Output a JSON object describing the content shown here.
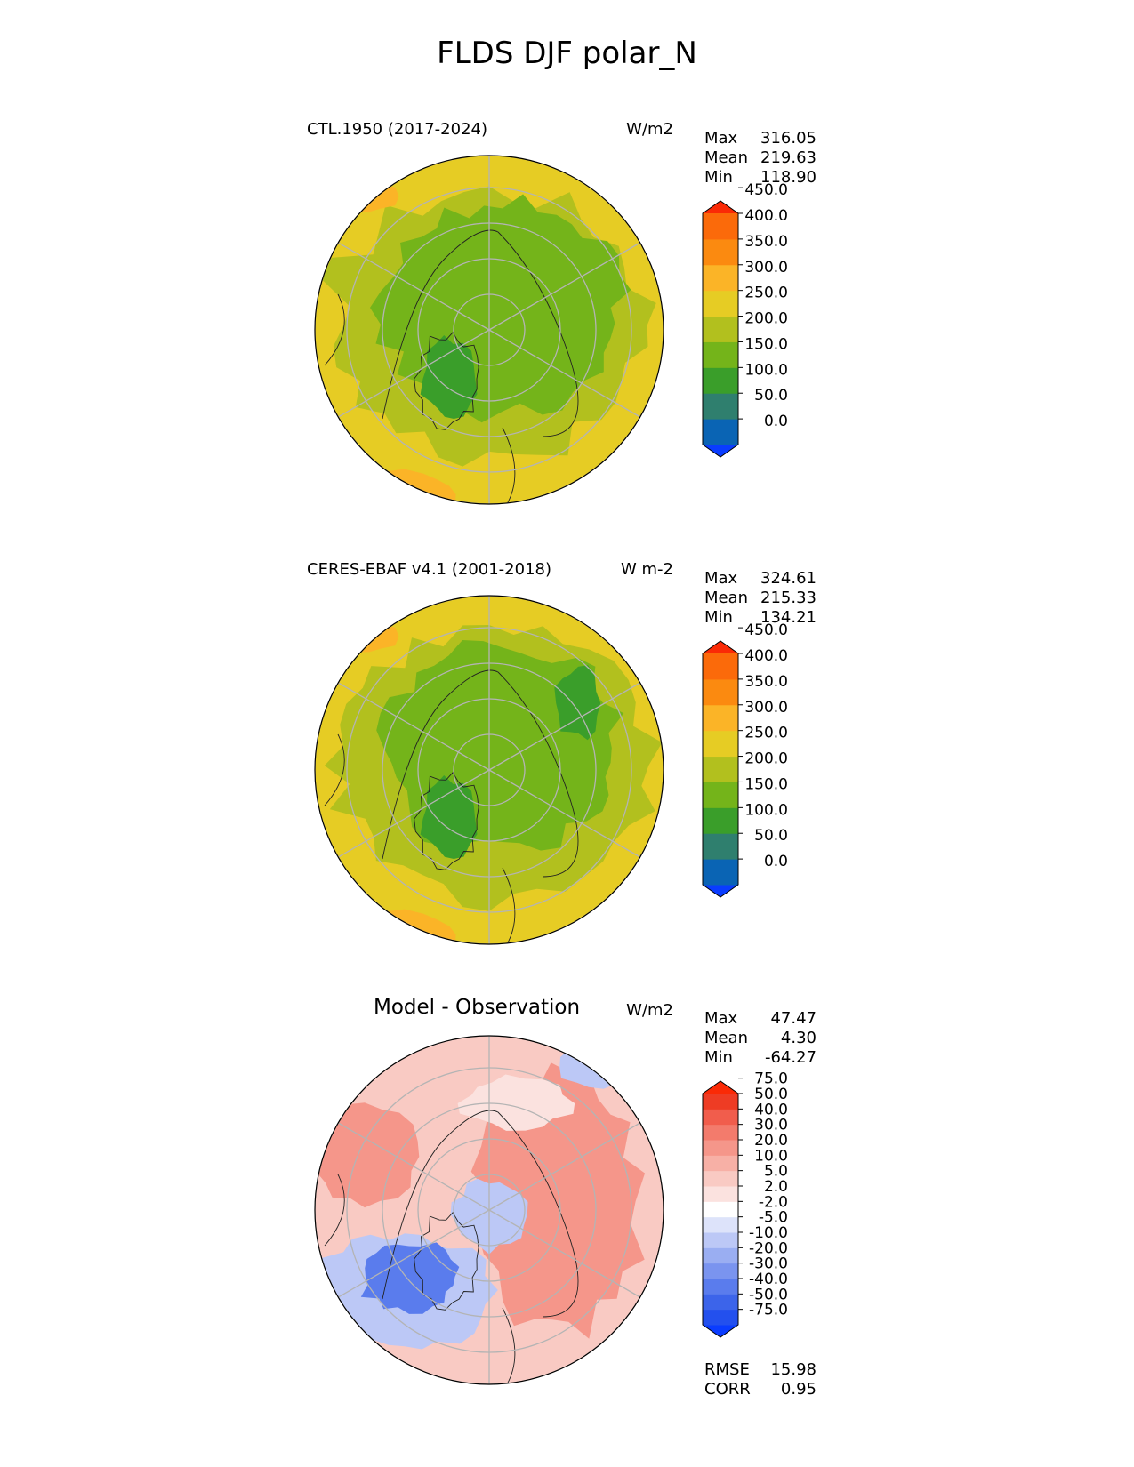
{
  "figure": {
    "title": "FLDS DJF polar_N"
  },
  "panels": [
    {
      "id": "test",
      "title": "CTL.1950 (2017-2024)",
      "units": "W/m2",
      "stats": [
        {
          "label": "Max",
          "value": "316.05"
        },
        {
          "label": "Mean",
          "value": "219.63"
        },
        {
          "label": "Min",
          "value": "118.90"
        }
      ],
      "colorbar": {
        "labels": [
          "450.0",
          "400.0",
          "350.0",
          "300.0",
          "250.0",
          "200.0",
          "150.0",
          "100.0",
          "50.0",
          "0.0"
        ],
        "levels": [
          0,
          50,
          100,
          150,
          200,
          250,
          300,
          350,
          400,
          450
        ],
        "colors": [
          "#0a3cff",
          "#0a64b4",
          "#2f7f6e",
          "#3a9e2a",
          "#74b41a",
          "#b2c01e",
          "#e6cc24",
          "#fbb427",
          "#fb8a10",
          "#fb6a0a",
          "#fa2a06"
        ]
      }
    },
    {
      "id": "reference",
      "title": "CERES-EBAF v4.1 (2001-2018)",
      "units": "W m-2",
      "stats": [
        {
          "label": "Max",
          "value": "324.61"
        },
        {
          "label": "Mean",
          "value": "215.33"
        },
        {
          "label": "Min",
          "value": "134.21"
        }
      ],
      "colorbar": {
        "labels": [
          "450.0",
          "400.0",
          "350.0",
          "300.0",
          "250.0",
          "200.0",
          "150.0",
          "100.0",
          "50.0",
          "0.0"
        ],
        "levels": [
          0,
          50,
          100,
          150,
          200,
          250,
          300,
          350,
          400,
          450
        ],
        "colors": [
          "#0a3cff",
          "#0a64b4",
          "#2f7f6e",
          "#3a9e2a",
          "#74b41a",
          "#b2c01e",
          "#e6cc24",
          "#fbb427",
          "#fb8a10",
          "#fb6a0a",
          "#fa2a06"
        ]
      }
    },
    {
      "id": "difference",
      "title": "Model - Observation",
      "units": "W/m2",
      "stats": [
        {
          "label": "Max",
          "value": "47.47"
        },
        {
          "label": "Mean",
          "value": "4.30"
        },
        {
          "label": "Min",
          "value": "-64.27"
        }
      ],
      "colorbar": {
        "labels": [
          "75.0",
          "50.0",
          "40.0",
          "30.0",
          "20.0",
          "10.0",
          "5.0",
          "2.0",
          "-2.0",
          "-5.0",
          "-10.0",
          "-20.0",
          "-30.0",
          "-40.0",
          "-50.0",
          "-75.0"
        ],
        "levels": [
          -75,
          -50,
          -40,
          -30,
          -20,
          -10,
          -5,
          -2,
          2,
          5,
          10,
          20,
          30,
          40,
          50,
          75
        ],
        "colors": [
          "#0a3cff",
          "#2350ee",
          "#3c64ea",
          "#5a7ced",
          "#7a94ef",
          "#9aaef2",
          "#bcc8f6",
          "#dde3fa",
          "#ffffff",
          "#fbe2df",
          "#f9cac3",
          "#f7b0a6",
          "#f5968a",
          "#f37b6c",
          "#f15d4c",
          "#ee3c24",
          "#fa2a06"
        ]
      },
      "metrics": [
        {
          "label": "RMSE",
          "value": "15.98"
        },
        {
          "label": "CORR",
          "value": "0.95"
        }
      ]
    }
  ],
  "map": {
    "projection": "north-polar-stereographic",
    "field_colors": {
      "test": {
        "outer": "#e6cc24",
        "mid": "#b2c01e",
        "inner": "#74b41a",
        "greenland": "#3a9e2a",
        "warm": "#fbb427"
      },
      "reference": {
        "outer": "#e6cc24",
        "mid": "#b2c01e",
        "inner": "#74b41a",
        "greenland": "#3a9e2a",
        "warm": "#fbb427"
      },
      "difference": {
        "base": "#f9cac3",
        "strong": "#f5968a",
        "weak": "#fbe2df",
        "cold": "#5a7ced",
        "cool": "#bcc8f6"
      }
    },
    "gridline_color": "#b4b4b4",
    "coastline_color": "#222222"
  }
}
